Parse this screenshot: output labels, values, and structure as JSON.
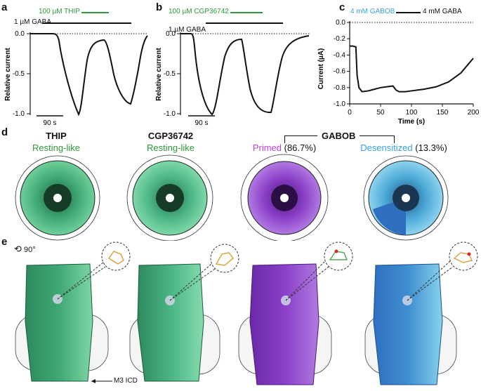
{
  "panels": {
    "a": {
      "label": "a",
      "drug_bar_label": "100 µM THIP",
      "gaba_bar_label": "1 µM GABA",
      "ylabel": "Relative current",
      "yticks": [
        "0.0",
        "-0.5",
        "-1.0"
      ],
      "scalebar": "90 s"
    },
    "b": {
      "label": "b",
      "drug_bar_label": "100 µM CGP36742",
      "gaba_bar_label": "1 µM GABA",
      "ylabel": "Relative current",
      "yticks": [
        "0.0",
        "-0.5",
        "-1.0"
      ],
      "scalebar": "90 s"
    },
    "c": {
      "label": "c",
      "drug_bar_label": "4 mM GABOB",
      "gaba_bar_label": "4 mM GABA",
      "ylabel": "Current  (µA)",
      "xlabel": "Time (s)",
      "yticks": [
        "0.0",
        "-0.2",
        "-0.4",
        "-0.6",
        "-0.8",
        "-1.0"
      ],
      "xticks": [
        "0",
        "50",
        "100",
        "150",
        "200"
      ]
    },
    "d": {
      "label": "d",
      "columns": [
        {
          "title": "THIP",
          "state": "Resting-like",
          "pct": ""
        },
        {
          "title": "CGP36742",
          "state": "Resting-like",
          "pct": ""
        },
        {
          "title": "",
          "state": "Primed",
          "pct": " (86.7%)"
        },
        {
          "title": "",
          "state": "Desensitized",
          "pct": " (13.3%)"
        }
      ],
      "group_title": "GABOB"
    },
    "e": {
      "label": "e",
      "rotation": "90°",
      "annotation": "M3 ICD"
    }
  },
  "colors": {
    "green_label": "#2e9a3a",
    "blue_label": "#3aa3e0",
    "magenta_label": "#c040d8",
    "thip_map": "#3fa874",
    "cgp_map": "#4bb585",
    "primed_map": "#8a3fc8",
    "desens_map": "#4aa8d6",
    "desens_dark": "#2f6fc0"
  },
  "chart_data": [
    {
      "type": "line",
      "panel": "a",
      "ylabel": "Relative current",
      "ylim": [
        -1.0,
        0.0
      ],
      "series": [
        {
          "values": [
            0.0,
            0.0,
            -0.02,
            -0.35,
            -0.7,
            -0.9,
            -1.0,
            -0.55,
            -0.2,
            -0.07,
            -0.06,
            -0.4,
            -0.7,
            -0.88,
            -0.6,
            -0.3,
            -0.1
          ]
        }
      ]
    },
    {
      "type": "line",
      "panel": "b",
      "ylabel": "Relative current",
      "ylim": [
        -1.0,
        0.0
      ],
      "series": [
        {
          "values": [
            0.0,
            0.0,
            -0.05,
            -0.6,
            -0.9,
            -1.0,
            -0.6,
            -0.25,
            -0.08,
            -0.06,
            -0.5,
            -0.8,
            -0.96,
            -0.6,
            -0.25,
            -0.08
          ]
        }
      ]
    },
    {
      "type": "line",
      "panel": "c",
      "xlabel": "Time (s)",
      "ylabel": "Current  (µA)",
      "xlim": [
        0,
        200
      ],
      "ylim": [
        -1.0,
        0.0
      ],
      "x": [
        0,
        5,
        10,
        12,
        15,
        20,
        30,
        40,
        50,
        60,
        70,
        75,
        80,
        90,
        100,
        120,
        140,
        160,
        180,
        200
      ],
      "series": [
        {
          "values": [
            -0.29,
            -0.29,
            -0.3,
            -0.65,
            -0.8,
            -0.85,
            -0.84,
            -0.82,
            -0.8,
            -0.79,
            -0.78,
            -0.83,
            -0.85,
            -0.85,
            -0.84,
            -0.82,
            -0.79,
            -0.73,
            -0.62,
            -0.44
          ]
        }
      ]
    }
  ]
}
